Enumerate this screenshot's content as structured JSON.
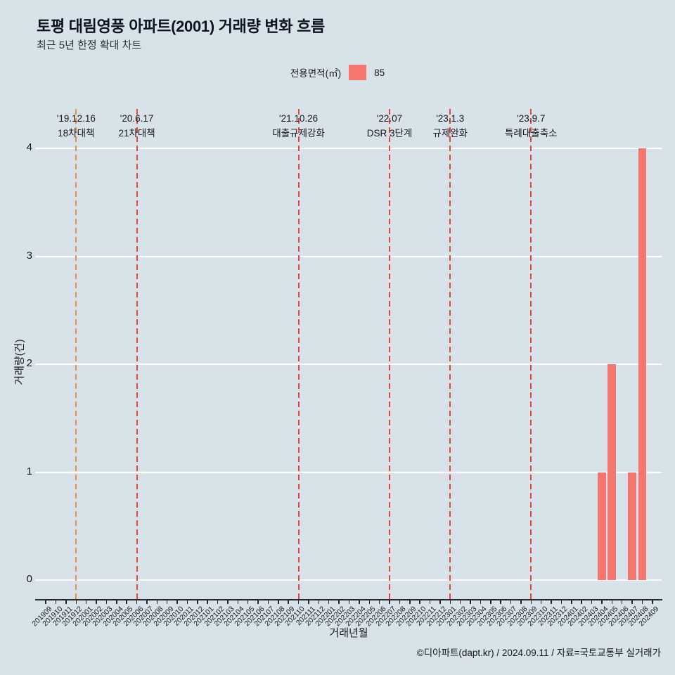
{
  "header": {
    "title": "토평 대림영풍 아파트(2001) 거래량 변화 흐름",
    "subtitle": "최근 5년 한정 확대 차트"
  },
  "legend": {
    "label": "전용면적(㎡)",
    "series_name": "85",
    "color": "#f4766e"
  },
  "chart_data": {
    "type": "bar",
    "title": "토평 대림영풍 아파트(2001) 거래량 변화 흐름",
    "xlabel": "거래년월",
    "ylabel": "거래량(건)",
    "ylim": [
      0,
      4
    ],
    "yticks": [
      0,
      1,
      2,
      3,
      4
    ],
    "grid": true,
    "legend_position": "top",
    "background_color": "#d8e3e9",
    "categories": [
      "201909",
      "201910",
      "201911",
      "201912",
      "202001",
      "202002",
      "202003",
      "202004",
      "202005",
      "202006",
      "202007",
      "202008",
      "202009",
      "202010",
      "202011",
      "202012",
      "202101",
      "202102",
      "202103",
      "202104",
      "202105",
      "202106",
      "202107",
      "202108",
      "202109",
      "202110",
      "202111",
      "202112",
      "202201",
      "202202",
      "202203",
      "202204",
      "202205",
      "202206",
      "202207",
      "202208",
      "202209",
      "202210",
      "202211",
      "202212",
      "202301",
      "202302",
      "202303",
      "202304",
      "202305",
      "202306",
      "202307",
      "202308",
      "202309",
      "202310",
      "202311",
      "202312",
      "202401",
      "202402",
      "202403",
      "202404",
      "202405",
      "202406",
      "202407",
      "202408",
      "202409"
    ],
    "series": [
      {
        "name": "85",
        "color": "#f4766e",
        "values": [
          0,
          0,
          0,
          0,
          0,
          0,
          0,
          0,
          0,
          0,
          0,
          0,
          0,
          0,
          0,
          0,
          0,
          0,
          0,
          0,
          0,
          0,
          0,
          0,
          0,
          0,
          0,
          0,
          0,
          0,
          0,
          0,
          0,
          0,
          0,
          0,
          0,
          0,
          0,
          0,
          0,
          0,
          0,
          0,
          0,
          0,
          0,
          0,
          0,
          0,
          0,
          0,
          0,
          0,
          0,
          1,
          2,
          0,
          1,
          4,
          0
        ]
      }
    ],
    "annotations": [
      {
        "month": "201912",
        "date": "'19.12.16",
        "label": "18차대책",
        "color": "#f08a4b"
      },
      {
        "month": "202006",
        "date": "'20.6.17",
        "label": "21차대책",
        "color": "#e8453c"
      },
      {
        "month": "202110",
        "date": "'21.10.26",
        "label": "대출규제강화",
        "color": "#e8453c"
      },
      {
        "month": "202207",
        "date": "'22.07",
        "label": "DSR 3단계",
        "color": "#e8453c"
      },
      {
        "month": "202301",
        "date": "'23.1.3",
        "label": "규제완화",
        "color": "#e8453c"
      },
      {
        "month": "202309",
        "date": "'23.9.7",
        "label": "특례대출축소",
        "color": "#e8453c"
      }
    ]
  },
  "footer": {
    "credit": "©디아파트(dapt.kr) / 2024.09.11 / 자료=국토교통부 실거래가"
  }
}
